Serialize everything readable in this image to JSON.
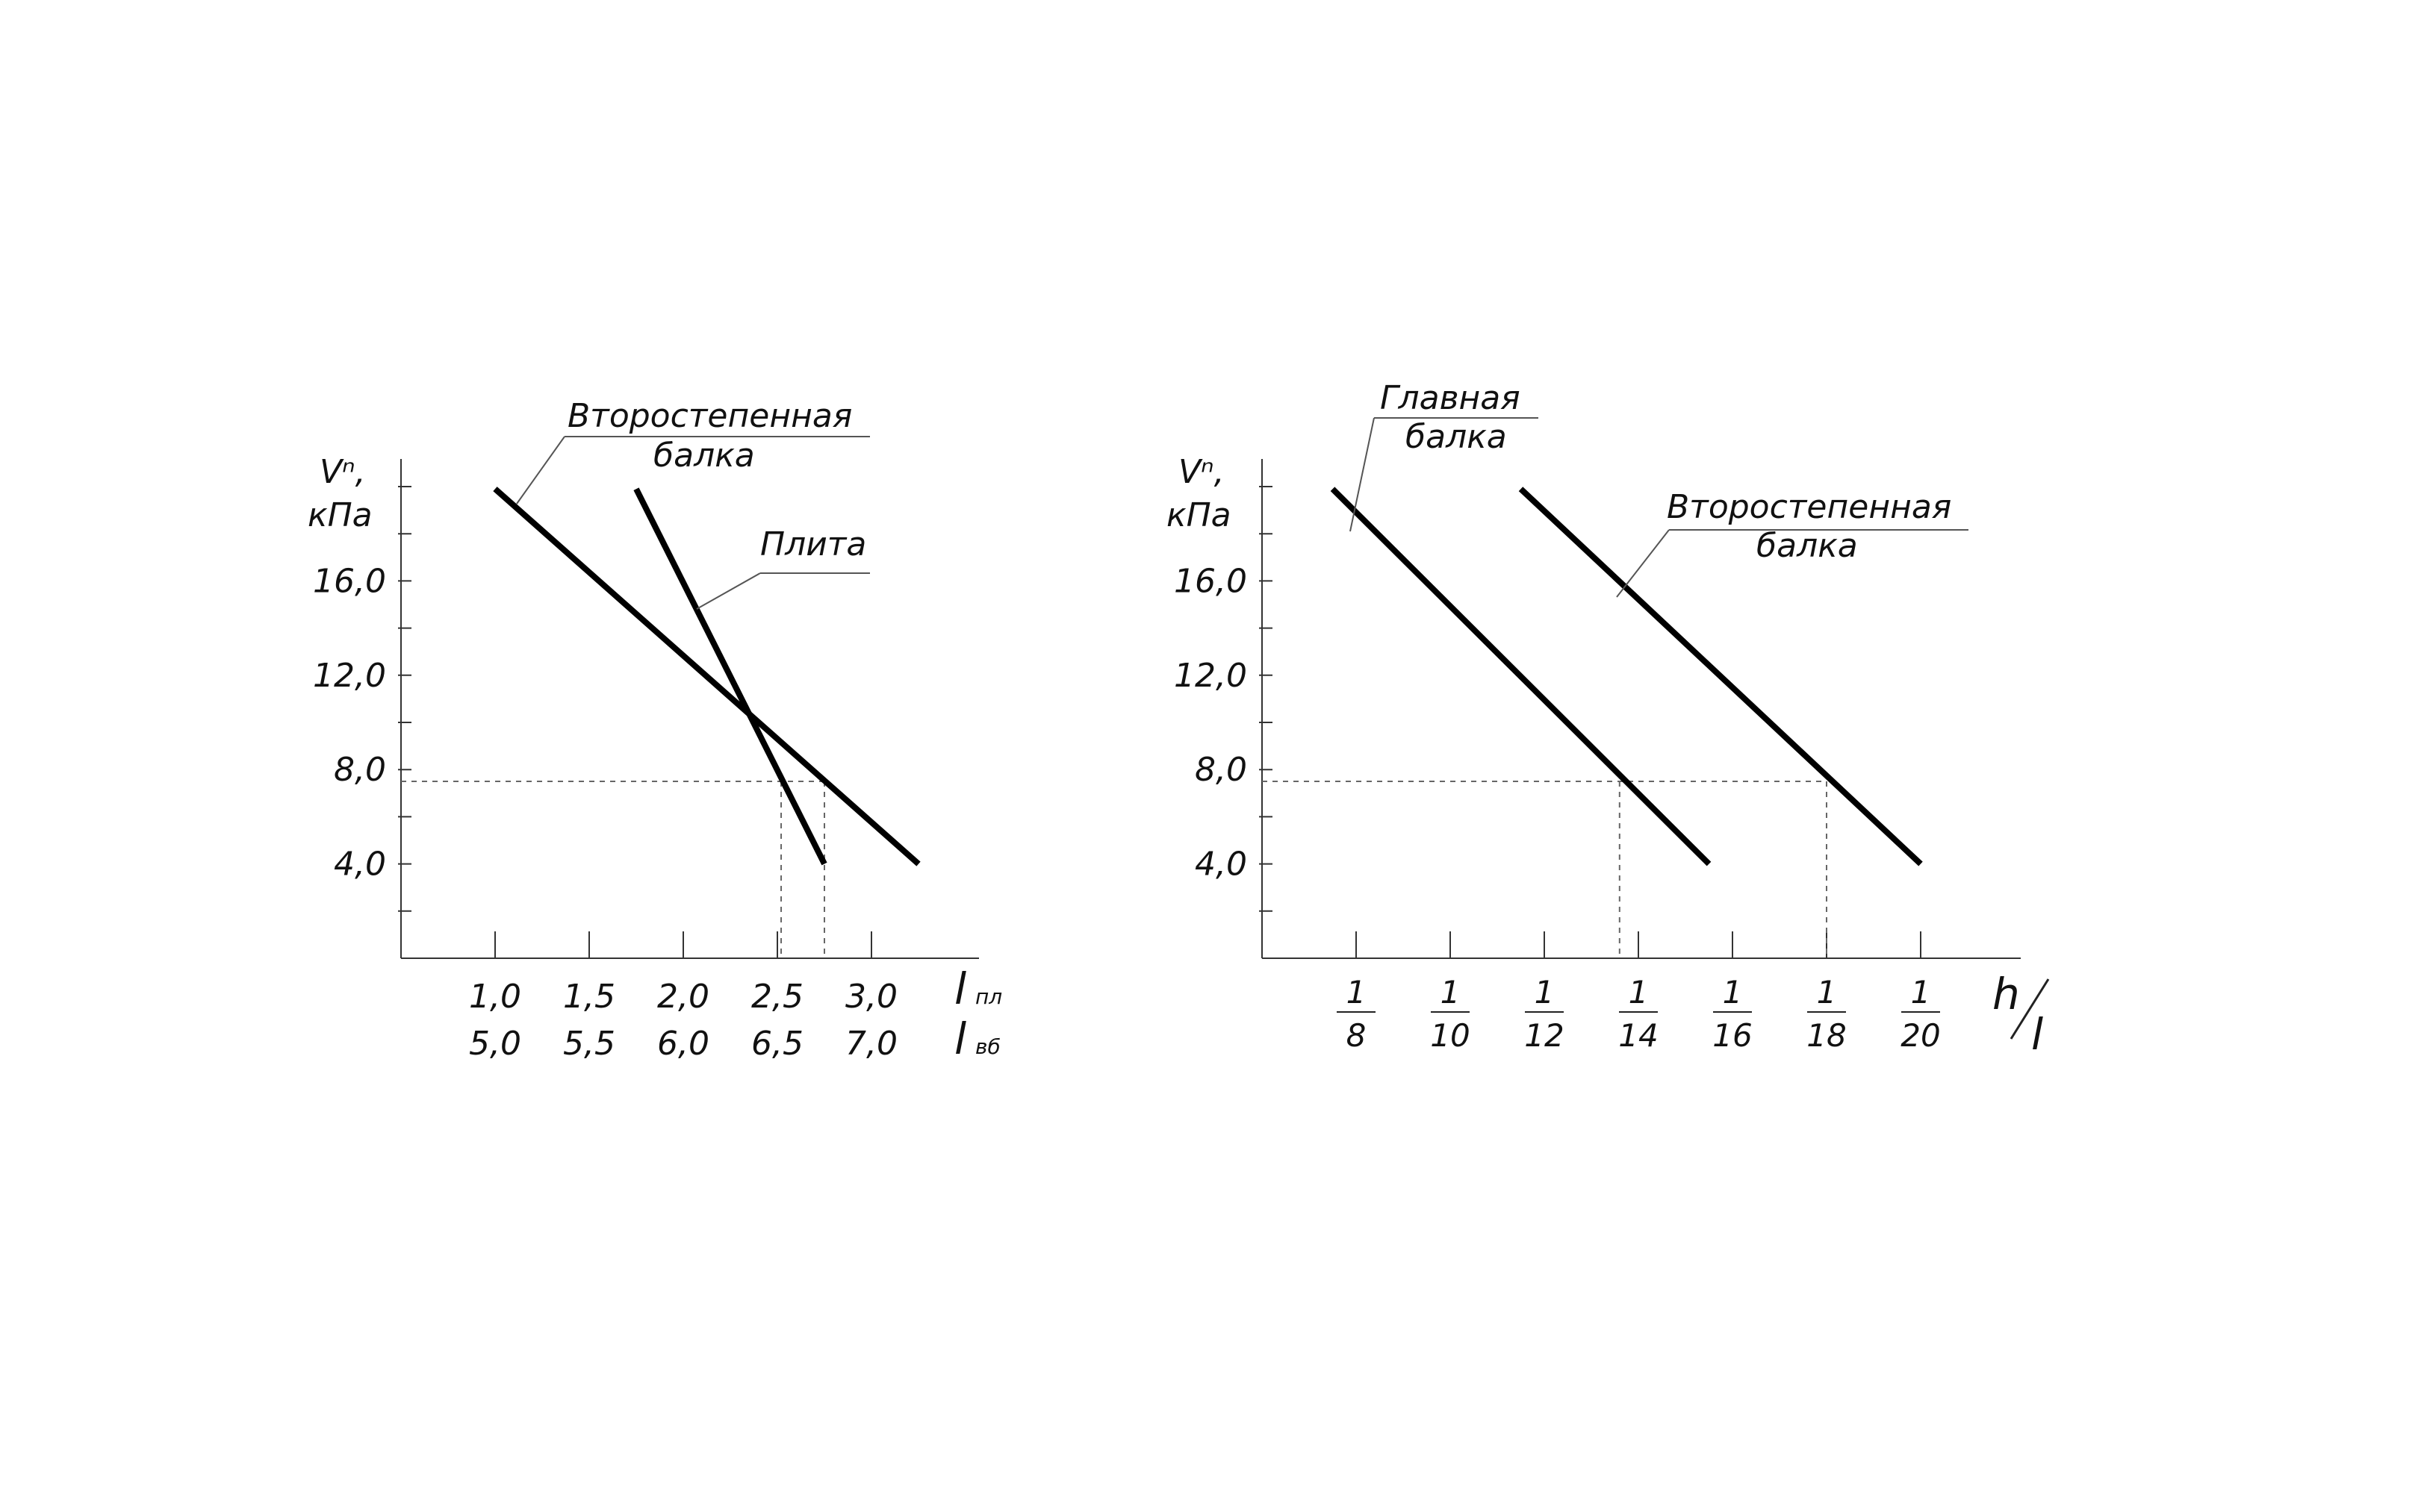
{
  "chart_data": [
    {
      "type": "line",
      "ylabel": [
        "Vⁿ,",
        "кПа"
      ],
      "y_ticks": [
        "4,0",
        "8,0",
        "12,0",
        "16,0"
      ],
      "x_ticks_top": [
        "1,0",
        "1,5",
        "2,0",
        "2,5",
        "3,0"
      ],
      "x_ticks_bottom": [
        "5,0",
        "5,5",
        "6,0",
        "6,5",
        "7,0"
      ],
      "x_label_top": {
        "main": "l",
        "sub": "пл"
      },
      "x_label_bottom": {
        "main": "l",
        "sub": "вб"
      },
      "series": [
        {
          "name_line1": "Второстепенная",
          "name_line2": "балка",
          "points": [
            [
              1.0,
              19.9
            ],
            [
              3.25,
              4.0
            ]
          ]
        },
        {
          "name_line1": "Плита",
          "name_line2": "",
          "points": [
            [
              1.75,
              19.9
            ],
            [
              2.75,
              4.0
            ]
          ]
        }
      ],
      "reference": {
        "y": 7.5,
        "x": [
          2.52,
          2.75
        ]
      },
      "ylim": [
        0,
        21
      ],
      "xlim": [
        0.5,
        3.55
      ],
      "grid": false
    },
    {
      "type": "line",
      "ylabel": [
        "Vⁿ,",
        "кПа"
      ],
      "y_ticks": [
        "4,0",
        "8,0",
        "12,0",
        "16,0"
      ],
      "x_ticks": [
        {
          "num": "1",
          "den": "8"
        },
        {
          "num": "1",
          "den": "10"
        },
        {
          "num": "1",
          "den": "12"
        },
        {
          "num": "1",
          "den": "14"
        },
        {
          "num": "1",
          "den": "16"
        },
        {
          "num": "1",
          "den": "18"
        },
        {
          "num": "1",
          "den": "20"
        }
      ],
      "x_label": {
        "num": "h",
        "den": "l"
      },
      "series": [
        {
          "name_line1": "Главная",
          "name_line2": "балка",
          "points": [
            [
              7.5,
              19.9
            ],
            [
              15.5,
              4.0
            ]
          ]
        },
        {
          "name_line1": "Второстепенная",
          "name_line2": "балка",
          "points": [
            [
              11.5,
              19.9
            ],
            [
              20.0,
              4.0
            ]
          ]
        }
      ],
      "reference": {
        "y": 7.5,
        "x": [
          13.6,
          18.0
        ]
      },
      "ylim": [
        0,
        21
      ],
      "xlim": [
        6.0,
        22.0
      ],
      "grid": false
    }
  ]
}
